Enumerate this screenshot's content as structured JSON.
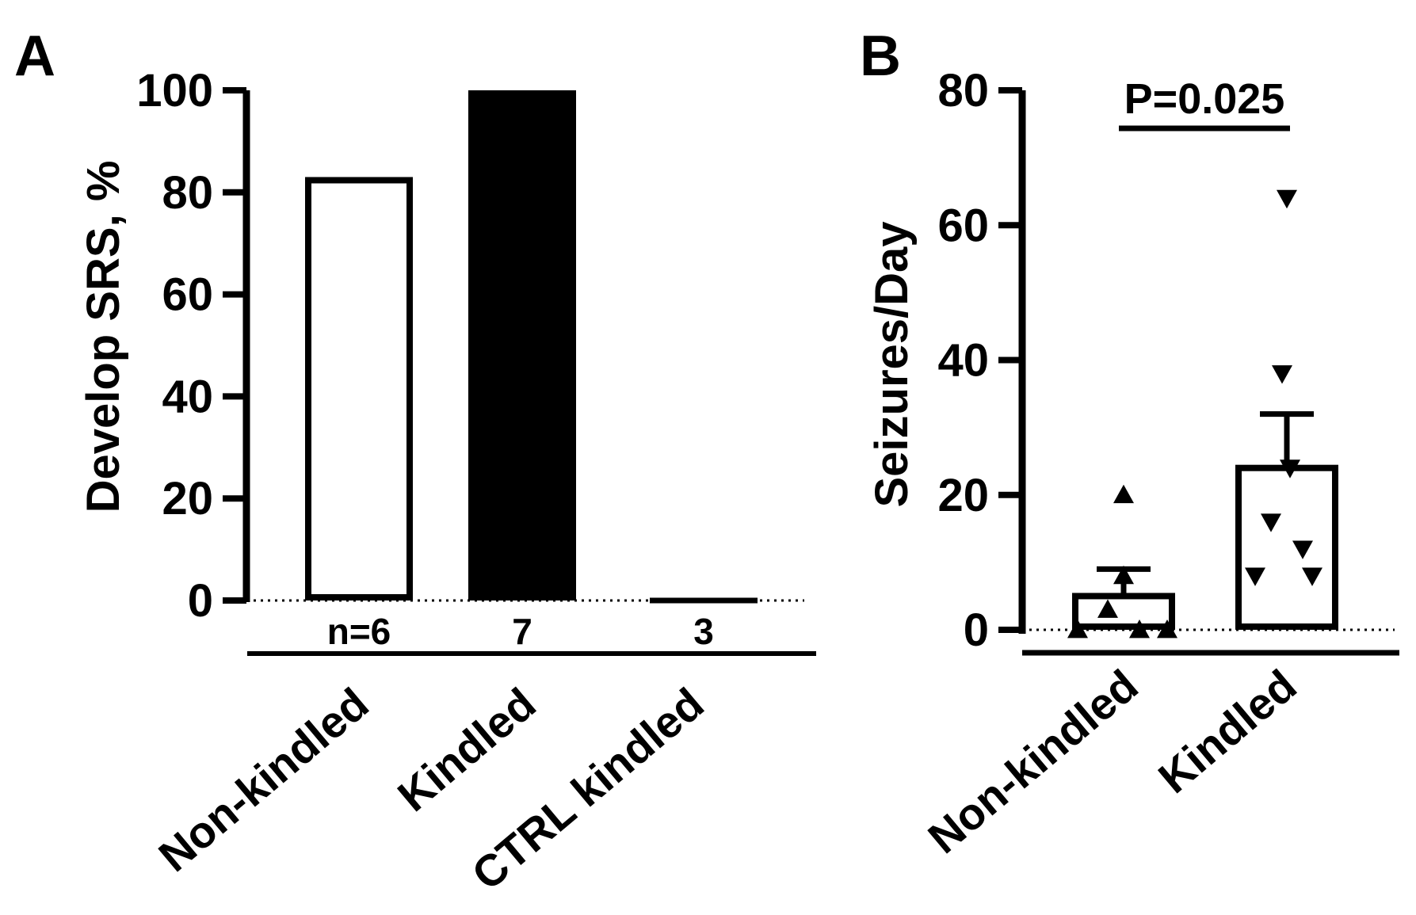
{
  "chart_data": [
    {
      "panel": "A",
      "type": "bar",
      "title": "",
      "xlabel": "",
      "ylabel": "Develop SRS, %",
      "ylim": [
        0,
        100
      ],
      "yticks": [
        0,
        20,
        40,
        60,
        80,
        100
      ],
      "grid": false,
      "categories": [
        "Non-kindled",
        "Kindled",
        "CTRL kindled"
      ],
      "values": [
        83,
        100,
        0
      ],
      "bar_fill": [
        "#ffffff",
        "#000000",
        "#ffffff"
      ],
      "n_labels": [
        "n=6",
        "7",
        "3"
      ],
      "zero_line": "dotted"
    },
    {
      "panel": "B",
      "type": "bar",
      "title": "",
      "xlabel": "",
      "ylabel": "Seizures/Day",
      "ylim": [
        0,
        80
      ],
      "yticks": [
        0,
        20,
        40,
        60,
        80
      ],
      "grid": false,
      "categories": [
        "Non-kindled",
        "Kindled"
      ],
      "series": [
        {
          "name": "mean",
          "values": [
            5,
            24
          ]
        },
        {
          "name": "sem",
          "values": [
            4,
            8
          ]
        }
      ],
      "points": [
        {
          "group": "Non-kindled",
          "marker": "triangle-up",
          "values": [
            20,
            8,
            3,
            0,
            0,
            0
          ]
        },
        {
          "group": "Kindled",
          "marker": "triangle-down",
          "values": [
            64,
            38,
            24,
            16,
            12,
            8,
            8
          ]
        }
      ],
      "annotation": "P=0.025",
      "zero_line": "dotted"
    }
  ],
  "panel_a": {
    "letter": "A"
  },
  "panel_b": {
    "letter": "B"
  }
}
